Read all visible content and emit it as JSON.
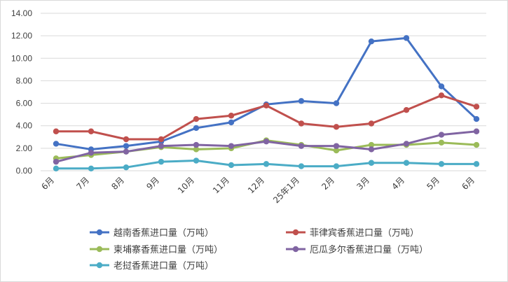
{
  "chart_data": {
    "type": "line",
    "categories": [
      "6月",
      "7月",
      "8月",
      "9月",
      "10月",
      "11月",
      "12月",
      "25年1月",
      "2月",
      "3月",
      "4月",
      "5月",
      "6月"
    ],
    "ylim": [
      0,
      14
    ],
    "yticks": [
      "0.00",
      "2.00",
      "4.00",
      "6.00",
      "8.00",
      "10.00",
      "12.00",
      "14.00"
    ],
    "grid": true,
    "legend_position": "bottom",
    "series": [
      {
        "name": "越南香蕉进口量（万吨）",
        "color": "#4472c4",
        "values": [
          2.4,
          1.9,
          2.2,
          2.6,
          3.8,
          4.3,
          5.9,
          6.2,
          6.0,
          11.5,
          11.8,
          7.5,
          4.6
        ]
      },
      {
        "name": "菲律宾香蕉进口量（万吨）",
        "color": "#c0504d",
        "values": [
          3.5,
          3.5,
          2.8,
          2.8,
          4.6,
          4.9,
          5.8,
          4.2,
          3.9,
          4.2,
          5.4,
          6.7,
          5.7
        ]
      },
      {
        "name": "柬埔寨香蕉进口量（万吨）",
        "color": "#9bbb59",
        "values": [
          1.1,
          1.4,
          1.7,
          2.1,
          1.9,
          2.0,
          2.7,
          2.3,
          1.8,
          2.3,
          2.3,
          2.5,
          2.3
        ]
      },
      {
        "name": "厄瓜多尔香蕉进口量（万吨）",
        "color": "#8064a2",
        "values": [
          0.8,
          1.6,
          1.7,
          2.2,
          2.3,
          2.2,
          2.6,
          2.2,
          2.2,
          1.9,
          2.4,
          3.2,
          3.5
        ]
      },
      {
        "name": "老挝香蕉进口量（万吨）",
        "color": "#4bacc6",
        "values": [
          0.2,
          0.2,
          0.3,
          0.8,
          0.9,
          0.5,
          0.6,
          0.4,
          0.4,
          0.7,
          0.7,
          0.6,
          0.6
        ]
      }
    ]
  }
}
